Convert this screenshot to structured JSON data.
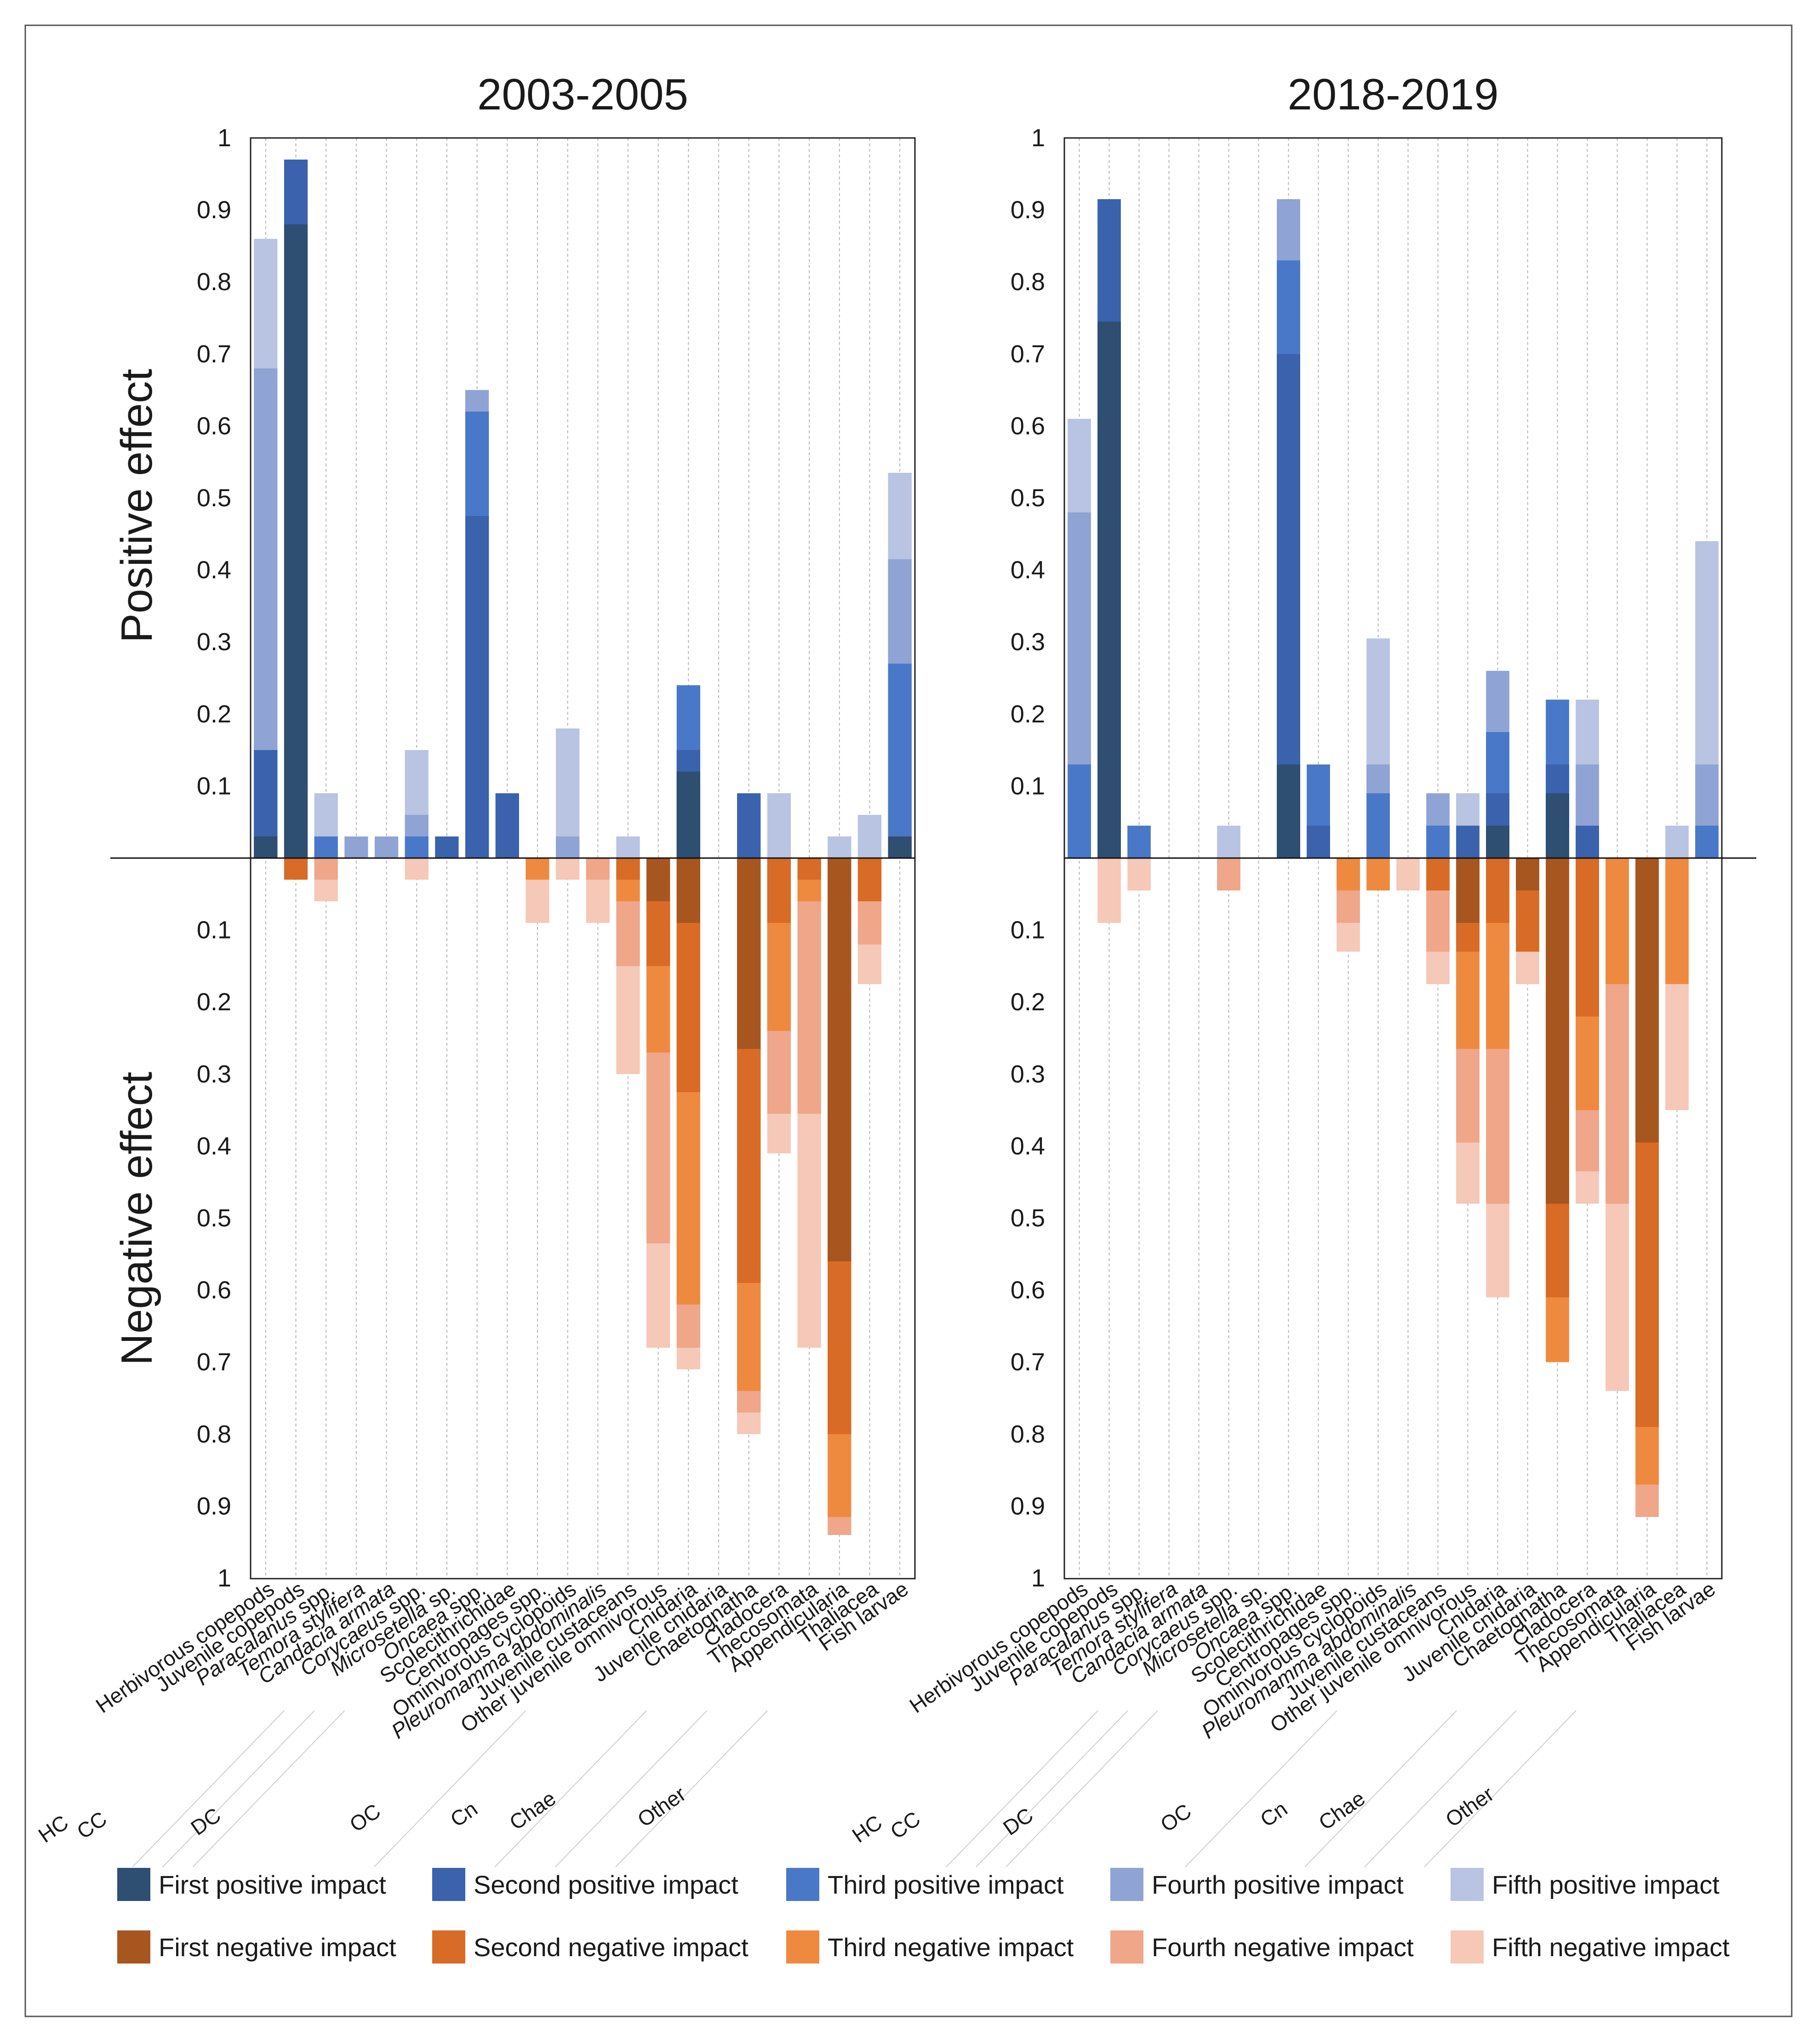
{
  "chart_data": {
    "type": "bar",
    "subtype": "diverging stacked bar (positive above, negative below)",
    "y_axis_labels": {
      "positive": "Positive effect",
      "negative": "Negative effect"
    },
    "ylim": [
      0,
      1
    ],
    "y_ticks": [
      "0.1",
      "0.2",
      "0.3",
      "0.4",
      "0.5",
      "0.6",
      "0.7",
      "0.8",
      "0.9",
      "1"
    ],
    "categories": [
      {
        "label": "Herbivorous copepods",
        "italic": false
      },
      {
        "label": "Juvenile copepods",
        "italic": false
      },
      {
        "label": "Paracalanus",
        "suffix": " spp.",
        "italic": true
      },
      {
        "label": "Temora stylifera",
        "suffix": "",
        "italic": true
      },
      {
        "label": "Candacia armata",
        "suffix": "",
        "italic": true
      },
      {
        "label": "Corycaeus",
        "suffix": " spp.",
        "italic": true
      },
      {
        "label": "Microsetella",
        "suffix": " sp.",
        "italic": true
      },
      {
        "label": "Oncaea",
        "suffix": " spp.",
        "italic": true
      },
      {
        "label": "Scolecithrichidae",
        "italic": false
      },
      {
        "label": "Centropages spp.",
        "italic": false
      },
      {
        "label": "Ominvorous cyclopoids",
        "italic": false
      },
      {
        "label": "Pleuromamma abdominalis",
        "suffix": "",
        "italic": true
      },
      {
        "label": "Juvenile custaceans",
        "italic": false
      },
      {
        "label": "Other juvenile omnivorous",
        "italic": false
      },
      {
        "label": "Cnidaria",
        "italic": false
      },
      {
        "label": "Juvenile cnidaria",
        "italic": false
      },
      {
        "label": "Chaetognatha",
        "italic": false
      },
      {
        "label": "Cladocera",
        "italic": false
      },
      {
        "label": "Thecosomata",
        "italic": false
      },
      {
        "label": "Appendicularia",
        "italic": false
      },
      {
        "label": "Thaliacea",
        "italic": false
      },
      {
        "label": "Fish larvae",
        "italic": false
      }
    ],
    "groups": [
      {
        "label": "HC",
        "start": 0,
        "end": 0
      },
      {
        "label": "CC",
        "start": 1,
        "end": 1
      },
      {
        "label": "DC",
        "start": 2,
        "end": 7
      },
      {
        "label": "OC",
        "start": 8,
        "end": 11
      },
      {
        "label": "Cn",
        "start": 12,
        "end": 13
      },
      {
        "label": "Chae",
        "start": 14,
        "end": 15
      },
      {
        "label": "Other",
        "start": 16,
        "end": 21
      }
    ],
    "legend": {
      "positive": [
        "First positive impact",
        "Second positive impact",
        "Third positive impact",
        "Fourth positive impact",
        "Fifth positive impact"
      ],
      "negative": [
        "First negative impact",
        "Second negative impact",
        "Third negative impact",
        "Fourth negative impact",
        "Fifth negative impact"
      ]
    },
    "colors": {
      "positive": [
        "#2e4e72",
        "#3a62ad",
        "#4a78c8",
        "#8fa3d4",
        "#b9c3e2"
      ],
      "negative": [
        "#a8561f",
        "#d86b25",
        "#ee8a3f",
        "#efa689",
        "#f5c8b7"
      ]
    },
    "panels": [
      {
        "title": "2003-2005",
        "positive": [
          [
            0.03,
            0.15,
            0,
            0.68,
            0.86
          ],
          [
            0.88,
            0.97,
            0,
            0,
            0
          ],
          [
            0,
            0,
            0.03,
            0,
            0.09
          ],
          [
            0,
            0,
            0,
            0.03,
            0
          ],
          [
            0,
            0,
            0,
            0.03,
            0
          ],
          [
            0,
            0,
            0.03,
            0.06,
            0.15
          ],
          [
            0,
            0.03,
            0,
            0,
            0
          ],
          [
            0,
            0.475,
            0.62,
            0.65,
            0
          ],
          [
            0,
            0.09,
            0,
            0,
            0
          ],
          [
            0,
            0,
            0,
            0,
            0
          ],
          [
            0,
            0,
            0,
            0.03,
            0.18
          ],
          [
            0,
            0,
            0,
            0,
            0
          ],
          [
            0,
            0,
            0,
            0,
            0.03
          ],
          [
            0,
            0,
            0,
            0,
            0
          ],
          [
            0.12,
            0.15,
            0.24,
            0,
            0
          ],
          [
            0,
            0,
            0,
            0,
            0
          ],
          [
            0,
            0.09,
            0,
            0,
            0
          ],
          [
            0,
            0,
            0,
            0,
            0.09
          ],
          [
            0,
            0,
            0,
            0,
            0
          ],
          [
            0,
            0,
            0,
            0,
            0.03
          ],
          [
            0,
            0,
            0,
            0,
            0.06
          ],
          [
            0.03,
            0,
            0.27,
            0.415,
            0.535
          ]
        ],
        "negative": [
          [
            0,
            0,
            0,
            0,
            0
          ],
          [
            0,
            0.03,
            0,
            0,
            0
          ],
          [
            0,
            0,
            0,
            0.03,
            0.06
          ],
          [
            0,
            0,
            0,
            0,
            0
          ],
          [
            0,
            0,
            0,
            0,
            0
          ],
          [
            0,
            0,
            0,
            0,
            0.03
          ],
          [
            0,
            0,
            0,
            0,
            0
          ],
          [
            0,
            0,
            0,
            0,
            0
          ],
          [
            0,
            0,
            0,
            0,
            0
          ],
          [
            0,
            0,
            0.03,
            0,
            0.09
          ],
          [
            0,
            0,
            0,
            0,
            0.03
          ],
          [
            0,
            0,
            0,
            0.03,
            0.09
          ],
          [
            0,
            0.03,
            0.06,
            0.15,
            0.3
          ],
          [
            0.06,
            0.15,
            0.27,
            0.535,
            0.68
          ],
          [
            0.09,
            0.325,
            0.62,
            0.68,
            0.71
          ],
          [
            0,
            0,
            0,
            0,
            0
          ],
          [
            0.265,
            0.59,
            0.74,
            0.77,
            0.8
          ],
          [
            0,
            0.09,
            0.24,
            0.355,
            0.41
          ],
          [
            0,
            0.03,
            0.06,
            0.355,
            0.68
          ],
          [
            0.56,
            0.8,
            0.915,
            0.94,
            0
          ],
          [
            0,
            0.06,
            0,
            0.12,
            0.175
          ],
          [
            0,
            0,
            0,
            0,
            0
          ]
        ]
      },
      {
        "title": "2018-2019",
        "positive": [
          [
            0,
            0,
            0.13,
            0.48,
            0.61
          ],
          [
            0.745,
            0.915,
            0,
            0,
            0
          ],
          [
            0,
            0,
            0.045,
            0,
            0
          ],
          [
            0,
            0,
            0,
            0,
            0
          ],
          [
            0,
            0,
            0,
            0,
            0
          ],
          [
            0,
            0,
            0,
            0,
            0.045
          ],
          [
            0,
            0,
            0,
            0,
            0
          ],
          [
            0.13,
            0.7,
            0.83,
            0.915,
            0
          ],
          [
            0,
            0.045,
            0.13,
            0,
            0
          ],
          [
            0,
            0,
            0,
            0,
            0
          ],
          [
            0,
            0,
            0.09,
            0.13,
            0.305
          ],
          [
            0,
            0,
            0,
            0,
            0
          ],
          [
            0,
            0,
            0.045,
            0.09,
            0
          ],
          [
            0,
            0.045,
            0,
            0,
            0.09
          ],
          [
            0.045,
            0.09,
            0.175,
            0.26,
            0
          ],
          [
            0,
            0,
            0,
            0,
            0
          ],
          [
            0.09,
            0.13,
            0.22,
            0,
            0
          ],
          [
            0,
            0.045,
            0,
            0.13,
            0.22
          ],
          [
            0,
            0,
            0,
            0,
            0
          ],
          [
            0,
            0,
            0,
            0,
            0
          ],
          [
            0,
            0,
            0,
            0,
            0.045
          ],
          [
            0,
            0,
            0.045,
            0.13,
            0.44
          ]
        ],
        "negative": [
          [
            0,
            0,
            0,
            0,
            0
          ],
          [
            0,
            0,
            0,
            0,
            0.09
          ],
          [
            0,
            0,
            0,
            0,
            0.045
          ],
          [
            0,
            0,
            0,
            0,
            0
          ],
          [
            0,
            0,
            0,
            0,
            0
          ],
          [
            0,
            0,
            0,
            0.045,
            0
          ],
          [
            0,
            0,
            0,
            0,
            0
          ],
          [
            0,
            0,
            0,
            0,
            0
          ],
          [
            0,
            0,
            0,
            0,
            0
          ],
          [
            0,
            0,
            0.045,
            0.09,
            0.13
          ],
          [
            0,
            0,
            0.045,
            0,
            0
          ],
          [
            0,
            0,
            0,
            0,
            0.045
          ],
          [
            0,
            0.045,
            0,
            0.13,
            0.175
          ],
          [
            0.09,
            0.13,
            0.265,
            0.395,
            0.48
          ],
          [
            0,
            0.09,
            0.265,
            0.48,
            0.61
          ],
          [
            0.045,
            0.13,
            0,
            0,
            0.175
          ],
          [
            0.48,
            0.61,
            0.7,
            0,
            0
          ],
          [
            0,
            0.22,
            0.35,
            0.435,
            0.48
          ],
          [
            0,
            0,
            0.175,
            0.48,
            0.74
          ],
          [
            0.395,
            0.79,
            0.87,
            0.915,
            0
          ],
          [
            0,
            0,
            0.175,
            0,
            0.35
          ],
          [
            0,
            0,
            0,
            0,
            0
          ]
        ]
      }
    ]
  }
}
